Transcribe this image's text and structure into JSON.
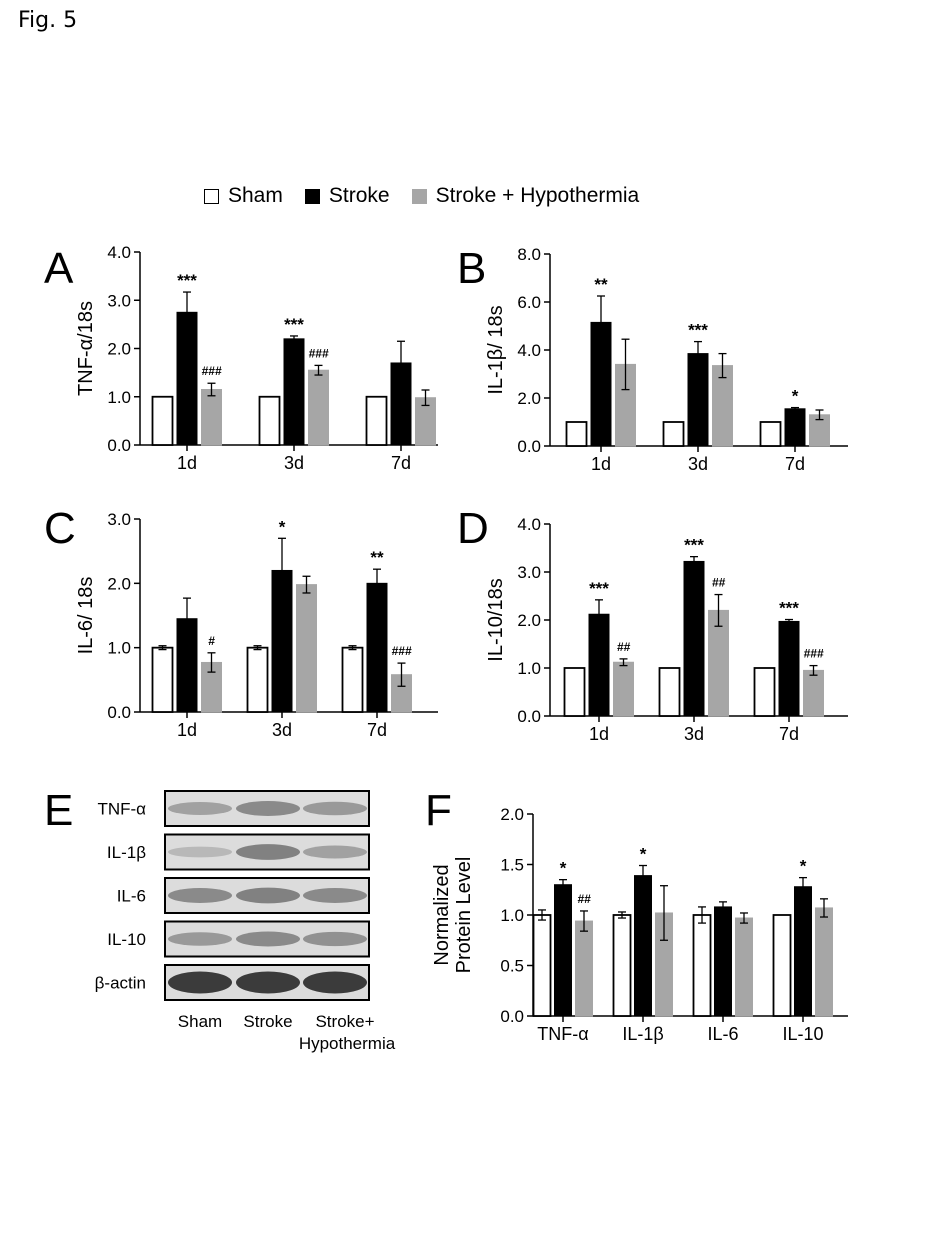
{
  "figure_label": "Fig. 5",
  "legend": [
    {
      "label": "Sham",
      "color": "#ffffff"
    },
    {
      "label": "Stroke",
      "color": "#000000"
    },
    {
      "label": "Stroke + Hypothermia",
      "color": "#a6a6a6"
    }
  ],
  "colors": {
    "sham": "#ffffff",
    "stroke": "#000000",
    "hypothermia": "#a6a6a6"
  },
  "chart_data": [
    {
      "panel": "A",
      "type": "bar",
      "ylabel": "TNF-α/18s",
      "ylim": [
        0,
        4
      ],
      "yticks": [
        0,
        1,
        2,
        3,
        4
      ],
      "ytick_labels": [
        "0.0",
        "1.0",
        "2.0",
        "3.0",
        "4.0"
      ],
      "categories": [
        "1d",
        "3d",
        "7d"
      ],
      "series": [
        {
          "name": "Sham",
          "values": [
            1.0,
            1.0,
            1.0
          ],
          "errors": [
            0.0,
            0.0,
            0.0
          ],
          "marks": [
            "",
            "",
            ""
          ]
        },
        {
          "name": "Stroke",
          "values": [
            2.75,
            2.2,
            1.7
          ],
          "errors": [
            0.42,
            0.06,
            0.45
          ],
          "marks": [
            "***",
            "***",
            ""
          ]
        },
        {
          "name": "Stroke + Hypothermia",
          "values": [
            1.15,
            1.55,
            0.98
          ],
          "errors": [
            0.13,
            0.1,
            0.16
          ],
          "marks": [
            "###",
            "###",
            ""
          ]
        }
      ]
    },
    {
      "panel": "B",
      "type": "bar",
      "ylabel": "IL-1β/ 18s",
      "ylim": [
        0,
        8
      ],
      "yticks": [
        0,
        2,
        4,
        6,
        8
      ],
      "ytick_labels": [
        "0.0",
        "2.0",
        "4.0",
        "6.0",
        "8.0"
      ],
      "categories": [
        "1d",
        "3d",
        "7d"
      ],
      "series": [
        {
          "name": "Sham",
          "values": [
            1.0,
            1.0,
            1.0
          ],
          "errors": [
            0.0,
            0.0,
            0.0
          ],
          "marks": [
            "",
            "",
            ""
          ]
        },
        {
          "name": "Stroke",
          "values": [
            5.15,
            3.85,
            1.55
          ],
          "errors": [
            1.1,
            0.5,
            0.05
          ],
          "marks": [
            "**",
            "***",
            "*"
          ]
        },
        {
          "name": "Stroke + Hypothermia",
          "values": [
            3.4,
            3.35,
            1.3
          ],
          "errors": [
            1.05,
            0.5,
            0.2
          ],
          "marks": [
            "",
            "",
            ""
          ]
        }
      ]
    },
    {
      "panel": "C",
      "type": "bar",
      "ylabel": "IL-6/ 18s",
      "ylim": [
        0,
        3
      ],
      "yticks": [
        0,
        1,
        2,
        3
      ],
      "ytick_labels": [
        "0.0",
        "1.0",
        "2.0",
        "3.0"
      ],
      "categories": [
        "1d",
        "3d",
        "7d"
      ],
      "series": [
        {
          "name": "Sham",
          "values": [
            1.0,
            1.0,
            1.0
          ],
          "errors": [
            0.03,
            0.03,
            0.03
          ],
          "marks": [
            "",
            "",
            ""
          ]
        },
        {
          "name": "Stroke",
          "values": [
            1.45,
            2.2,
            2.0
          ],
          "errors": [
            0.32,
            0.5,
            0.22
          ],
          "marks": [
            "",
            "*",
            "**"
          ]
        },
        {
          "name": "Stroke + Hypothermia",
          "values": [
            0.77,
            1.98,
            0.58
          ],
          "errors": [
            0.15,
            0.13,
            0.18
          ],
          "marks": [
            "#",
            "",
            "###"
          ]
        }
      ]
    },
    {
      "panel": "D",
      "type": "bar",
      "ylabel": "IL-10/18s",
      "ylim": [
        0,
        4
      ],
      "yticks": [
        0,
        1,
        2,
        3,
        4
      ],
      "ytick_labels": [
        "0.0",
        "1.0",
        "2.0",
        "3.0",
        "4.0"
      ],
      "categories": [
        "1d",
        "3d",
        "7d"
      ],
      "series": [
        {
          "name": "Sham",
          "values": [
            1.0,
            1.0,
            1.0
          ],
          "errors": [
            0.0,
            0.0,
            0.0
          ],
          "marks": [
            "",
            "",
            ""
          ]
        },
        {
          "name": "Stroke",
          "values": [
            2.12,
            3.22,
            1.97
          ],
          "errors": [
            0.3,
            0.1,
            0.04
          ],
          "marks": [
            "***",
            "***",
            "***"
          ]
        },
        {
          "name": "Stroke + Hypothermia",
          "values": [
            1.12,
            2.2,
            0.95
          ],
          "errors": [
            0.07,
            0.33,
            0.1
          ],
          "marks": [
            "##",
            "##",
            "###"
          ]
        }
      ]
    },
    {
      "panel": "F",
      "type": "bar",
      "ylabel": [
        "Normalized",
        "Protein Level"
      ],
      "ylim": [
        0,
        2
      ],
      "yticks": [
        0,
        0.5,
        1,
        1.5,
        2
      ],
      "ytick_labels": [
        "0.0",
        "0.5",
        "1.0",
        "1.5",
        "2.0"
      ],
      "categories": [
        "TNF-α",
        "IL-1β",
        "IL-6",
        "IL-10"
      ],
      "series": [
        {
          "name": "Sham",
          "values": [
            1.0,
            1.0,
            1.0,
            1.0
          ],
          "errors": [
            0.05,
            0.03,
            0.08,
            0.0
          ],
          "marks": [
            "",
            "",
            "",
            ""
          ]
        },
        {
          "name": "Stroke",
          "values": [
            1.3,
            1.39,
            1.08,
            1.28
          ],
          "errors": [
            0.05,
            0.1,
            0.05,
            0.09
          ],
          "marks": [
            "*",
            "*",
            "",
            "*"
          ]
        },
        {
          "name": "Stroke + Hypothermia",
          "values": [
            0.94,
            1.02,
            0.97,
            1.07
          ],
          "errors": [
            0.1,
            0.27,
            0.05,
            0.09
          ],
          "marks": [
            "##",
            "",
            "",
            ""
          ]
        }
      ]
    }
  ],
  "blot": {
    "panel": "E",
    "rows": [
      "TNF-α",
      "IL-1β",
      "IL-6",
      "IL-10",
      "β-actin"
    ],
    "columns": [
      "Sham",
      "Stroke",
      "Stroke+\nHypothermia"
    ],
    "intensity": [
      [
        0.35,
        0.5,
        0.4
      ],
      [
        0.2,
        0.55,
        0.35
      ],
      [
        0.5,
        0.55,
        0.5
      ],
      [
        0.4,
        0.5,
        0.45
      ],
      [
        1.0,
        1.0,
        1.0
      ]
    ]
  }
}
